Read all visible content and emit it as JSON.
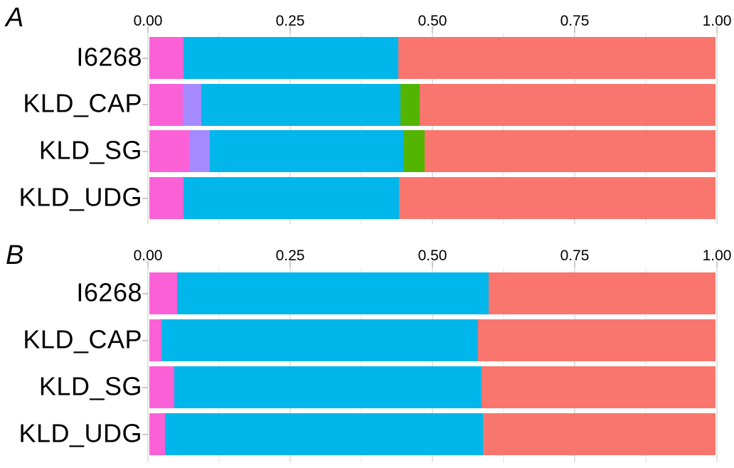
{
  "figure": {
    "panels": [
      {
        "letter": "A"
      },
      {
        "letter": "B"
      }
    ]
  },
  "style": {
    "background": "#FFFFFF",
    "grid_major_color": "#E3E3E3",
    "grid_minor_color": "#EFEFEF",
    "tick_color": "#C9C9C9",
    "text_color": "#000000"
  },
  "chart_data": [
    {
      "type": "bar",
      "panel": "A",
      "orientation": "horizontal",
      "stacked": true,
      "title": "",
      "xlabel": "",
      "ylabel": "",
      "xlim": [
        0,
        1
      ],
      "grid": true,
      "legend_position": "none",
      "x_axis_position": "top",
      "minor_tick_step": 0.125,
      "xticks": [
        {
          "value": 0.0,
          "label": "0.00"
        },
        {
          "value": 0.25,
          "label": "0.25"
        },
        {
          "value": 0.5,
          "label": "0.50"
        },
        {
          "value": 0.75,
          "label": "0.75"
        },
        {
          "value": 1.0,
          "label": "1.00"
        }
      ],
      "categories": [
        "I6268",
        "KLD_CAP",
        "KLD_SG",
        "KLD_UDG"
      ],
      "series": [
        {
          "name": "ancestry-pink",
          "color": "#FB61D7",
          "values": [
            0.06,
            0.059,
            0.07,
            0.06
          ]
        },
        {
          "name": "ancestry-lavender",
          "color": "#A58AFF",
          "values": [
            0.0,
            0.033,
            0.037,
            0.0
          ]
        },
        {
          "name": "ancestry-blue",
          "color": "#00B6EB",
          "values": [
            0.38,
            0.351,
            0.342,
            0.381
          ]
        },
        {
          "name": "ancestry-green",
          "color": "#53B400",
          "values": [
            0.0,
            0.034,
            0.037,
            0.0
          ]
        },
        {
          "name": "ancestry-salmon",
          "color": "#F8766D",
          "values": [
            0.56,
            0.523,
            0.514,
            0.559
          ]
        }
      ]
    },
    {
      "type": "bar",
      "panel": "B",
      "orientation": "horizontal",
      "stacked": true,
      "title": "",
      "xlabel": "",
      "ylabel": "",
      "xlim": [
        0,
        1
      ],
      "grid": true,
      "legend_position": "none",
      "x_axis_position": "top",
      "minor_tick_step": 0.125,
      "xticks": [
        {
          "value": 0.0,
          "label": "0.00"
        },
        {
          "value": 0.25,
          "label": "0.25"
        },
        {
          "value": 0.5,
          "label": "0.50"
        },
        {
          "value": 0.75,
          "label": "0.75"
        },
        {
          "value": 1.0,
          "label": "1.00"
        }
      ],
      "categories": [
        "I6268",
        "KLD_CAP",
        "KLD_SG",
        "KLD_UDG"
      ],
      "series": [
        {
          "name": "ancestry-pink",
          "color": "#FB61D7",
          "values": [
            0.049,
            0.021,
            0.044,
            0.028
          ]
        },
        {
          "name": "ancestry-lavender",
          "color": "#A58AFF",
          "values": [
            0.0,
            0.0,
            0.0,
            0.0
          ]
        },
        {
          "name": "ancestry-blue",
          "color": "#00B6EB",
          "values": [
            0.55,
            0.559,
            0.543,
            0.561
          ]
        },
        {
          "name": "ancestry-green",
          "color": "#53B400",
          "values": [
            0.0,
            0.0,
            0.0,
            0.0
          ]
        },
        {
          "name": "ancestry-salmon",
          "color": "#F8766D",
          "values": [
            0.401,
            0.42,
            0.413,
            0.411
          ]
        }
      ]
    }
  ]
}
